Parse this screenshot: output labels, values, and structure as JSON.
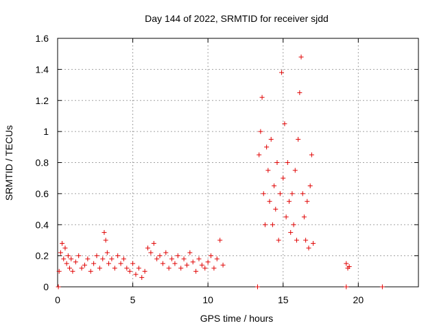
{
  "chart_data": {
    "type": "scatter",
    "title": "Day 144 of 2022, SRMTID for receiver sjdd",
    "xlabel": "GPS time / hours",
    "ylabel": "SRMTID / TECUs",
    "xlim": [
      0,
      24
    ],
    "ylim": [
      0,
      1.6
    ],
    "x_ticks": [
      0,
      5,
      10,
      15,
      20
    ],
    "x_tick_labels": [
      "0",
      "5",
      "10",
      "15",
      "20"
    ],
    "y_ticks": [
      0,
      0.2,
      0.4,
      0.6,
      0.8,
      1.0,
      1.2,
      1.4,
      1.6
    ],
    "y_tick_labels": [
      "0",
      "0.2",
      "0.4",
      "0.6",
      "0.8",
      "1",
      "1.2",
      "1.4",
      "1.6"
    ],
    "grid": true,
    "marker": "+",
    "series": [
      {
        "name": "SRMTID",
        "color": "#e00000",
        "x": [
          0.1,
          0.2,
          0.3,
          0.4,
          0.5,
          0.6,
          0.7,
          0.8,
          0.9,
          1.0,
          1.2,
          1.4,
          1.6,
          1.8,
          2.0,
          2.2,
          2.4,
          2.6,
          2.8,
          3.0,
          3.1,
          3.2,
          3.3,
          3.4,
          3.6,
          3.8,
          4.0,
          4.2,
          4.4,
          4.6,
          4.8,
          5.0,
          5.2,
          5.4,
          5.6,
          5.8,
          6.0,
          6.2,
          6.4,
          6.6,
          6.8,
          7.0,
          7.2,
          7.4,
          7.6,
          7.8,
          8.0,
          8.2,
          8.4,
          8.6,
          8.8,
          9.0,
          9.2,
          9.4,
          9.6,
          9.8,
          10.0,
          10.2,
          10.4,
          10.6,
          10.8,
          11.0,
          13.4,
          13.5,
          13.6,
          13.7,
          13.8,
          13.9,
          14.0,
          14.1,
          14.2,
          14.3,
          14.4,
          14.5,
          14.6,
          14.7,
          14.8,
          14.9,
          15.0,
          15.1,
          15.2,
          15.3,
          15.4,
          15.5,
          15.6,
          15.7,
          15.8,
          15.9,
          16.0,
          16.1,
          16.2,
          16.3,
          16.4,
          16.5,
          16.6,
          16.7,
          16.8,
          16.9,
          17.0,
          0.05,
          13.3,
          19.2,
          21.6,
          19.2,
          19.3,
          19.4
        ],
        "y": [
          0.1,
          0.22,
          0.28,
          0.18,
          0.25,
          0.15,
          0.2,
          0.12,
          0.18,
          0.1,
          0.16,
          0.2,
          0.12,
          0.14,
          0.18,
          0.1,
          0.15,
          0.2,
          0.12,
          0.18,
          0.35,
          0.3,
          0.22,
          0.15,
          0.18,
          0.12,
          0.2,
          0.15,
          0.18,
          0.12,
          0.1,
          0.15,
          0.08,
          0.12,
          0.06,
          0.1,
          0.25,
          0.22,
          0.28,
          0.18,
          0.2,
          0.15,
          0.22,
          0.12,
          0.18,
          0.15,
          0.2,
          0.12,
          0.18,
          0.14,
          0.22,
          0.16,
          0.1,
          0.18,
          0.14,
          0.12,
          0.16,
          0.2,
          0.12,
          0.18,
          0.3,
          0.14,
          0.85,
          1.0,
          1.22,
          0.6,
          0.4,
          0.9,
          0.75,
          0.55,
          0.95,
          0.4,
          0.65,
          0.5,
          0.8,
          0.3,
          0.6,
          1.38,
          0.7,
          1.05,
          0.45,
          0.8,
          0.55,
          0.35,
          0.6,
          0.4,
          0.75,
          0.3,
          0.95,
          1.25,
          1.48,
          0.6,
          0.45,
          0.3,
          0.55,
          0.25,
          0.65,
          0.85,
          0.28,
          0.0,
          0.0,
          0.0,
          0.0,
          0.15,
          0.12,
          0.13
        ]
      }
    ]
  }
}
